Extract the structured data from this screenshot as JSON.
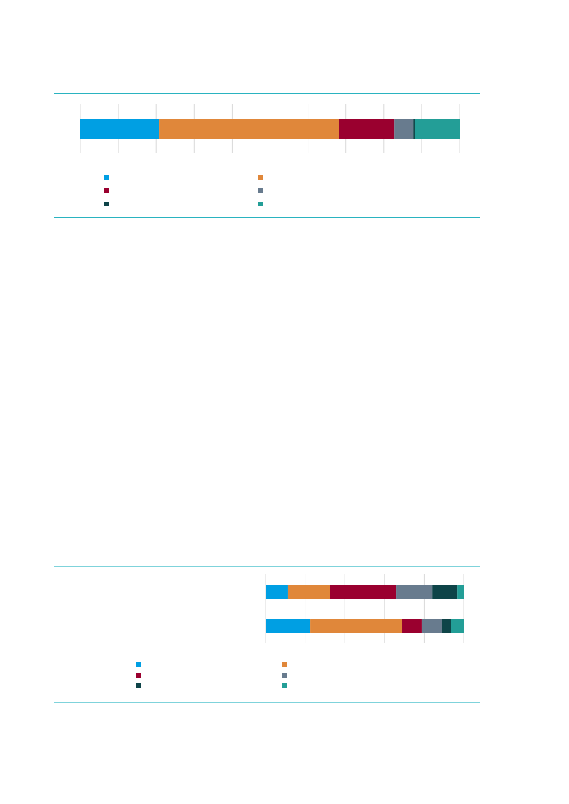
{
  "colors": {
    "rule": "#2ab3c0",
    "grid": "#d9d9d9"
  },
  "chart_data": [
    {
      "type": "bar",
      "orientation": "horizontal",
      "stacked": true,
      "title": "",
      "xlabel": "",
      "ylabel": "",
      "xlim": [
        0,
        100
      ],
      "grid": true,
      "legend_position": "bottom",
      "categories": [
        ""
      ],
      "series": [
        {
          "name": "",
          "color": "#009fe3",
          "values": [
            20.7
          ]
        },
        {
          "name": "",
          "color": "#e0873a",
          "values": [
            47.4
          ]
        },
        {
          "name": "",
          "color": "#9a002f",
          "values": [
            14.7
          ]
        },
        {
          "name": "",
          "color": "#687b8e",
          "values": [
            4.9
          ]
        },
        {
          "name": "",
          "color": "#0e4448",
          "values": [
            0.5
          ]
        },
        {
          "name": "",
          "color": "#239e97",
          "values": [
            11.8
          ]
        }
      ]
    },
    {
      "type": "bar",
      "orientation": "horizontal",
      "stacked": true,
      "title": "",
      "xlabel": "",
      "ylabel": "",
      "xlim": [
        0,
        100
      ],
      "grid": true,
      "legend_position": "bottom",
      "categories": [
        "",
        ""
      ],
      "series": [
        {
          "name": "",
          "color": "#009fe3",
          "values": [
            11.1,
            22.6
          ]
        },
        {
          "name": "",
          "color": "#e0873a",
          "values": [
            21.2,
            46.5
          ]
        },
        {
          "name": "",
          "color": "#9a002f",
          "values": [
            33.7,
            9.7
          ]
        },
        {
          "name": "",
          "color": "#687b8e",
          "values": [
            18.1,
            10.1
          ]
        },
        {
          "name": "",
          "color": "#0e4448",
          "values": [
            12.5,
            4.5
          ]
        },
        {
          "name": "",
          "color": "#239e97",
          "values": [
            3.4,
            6.6
          ]
        }
      ]
    }
  ]
}
